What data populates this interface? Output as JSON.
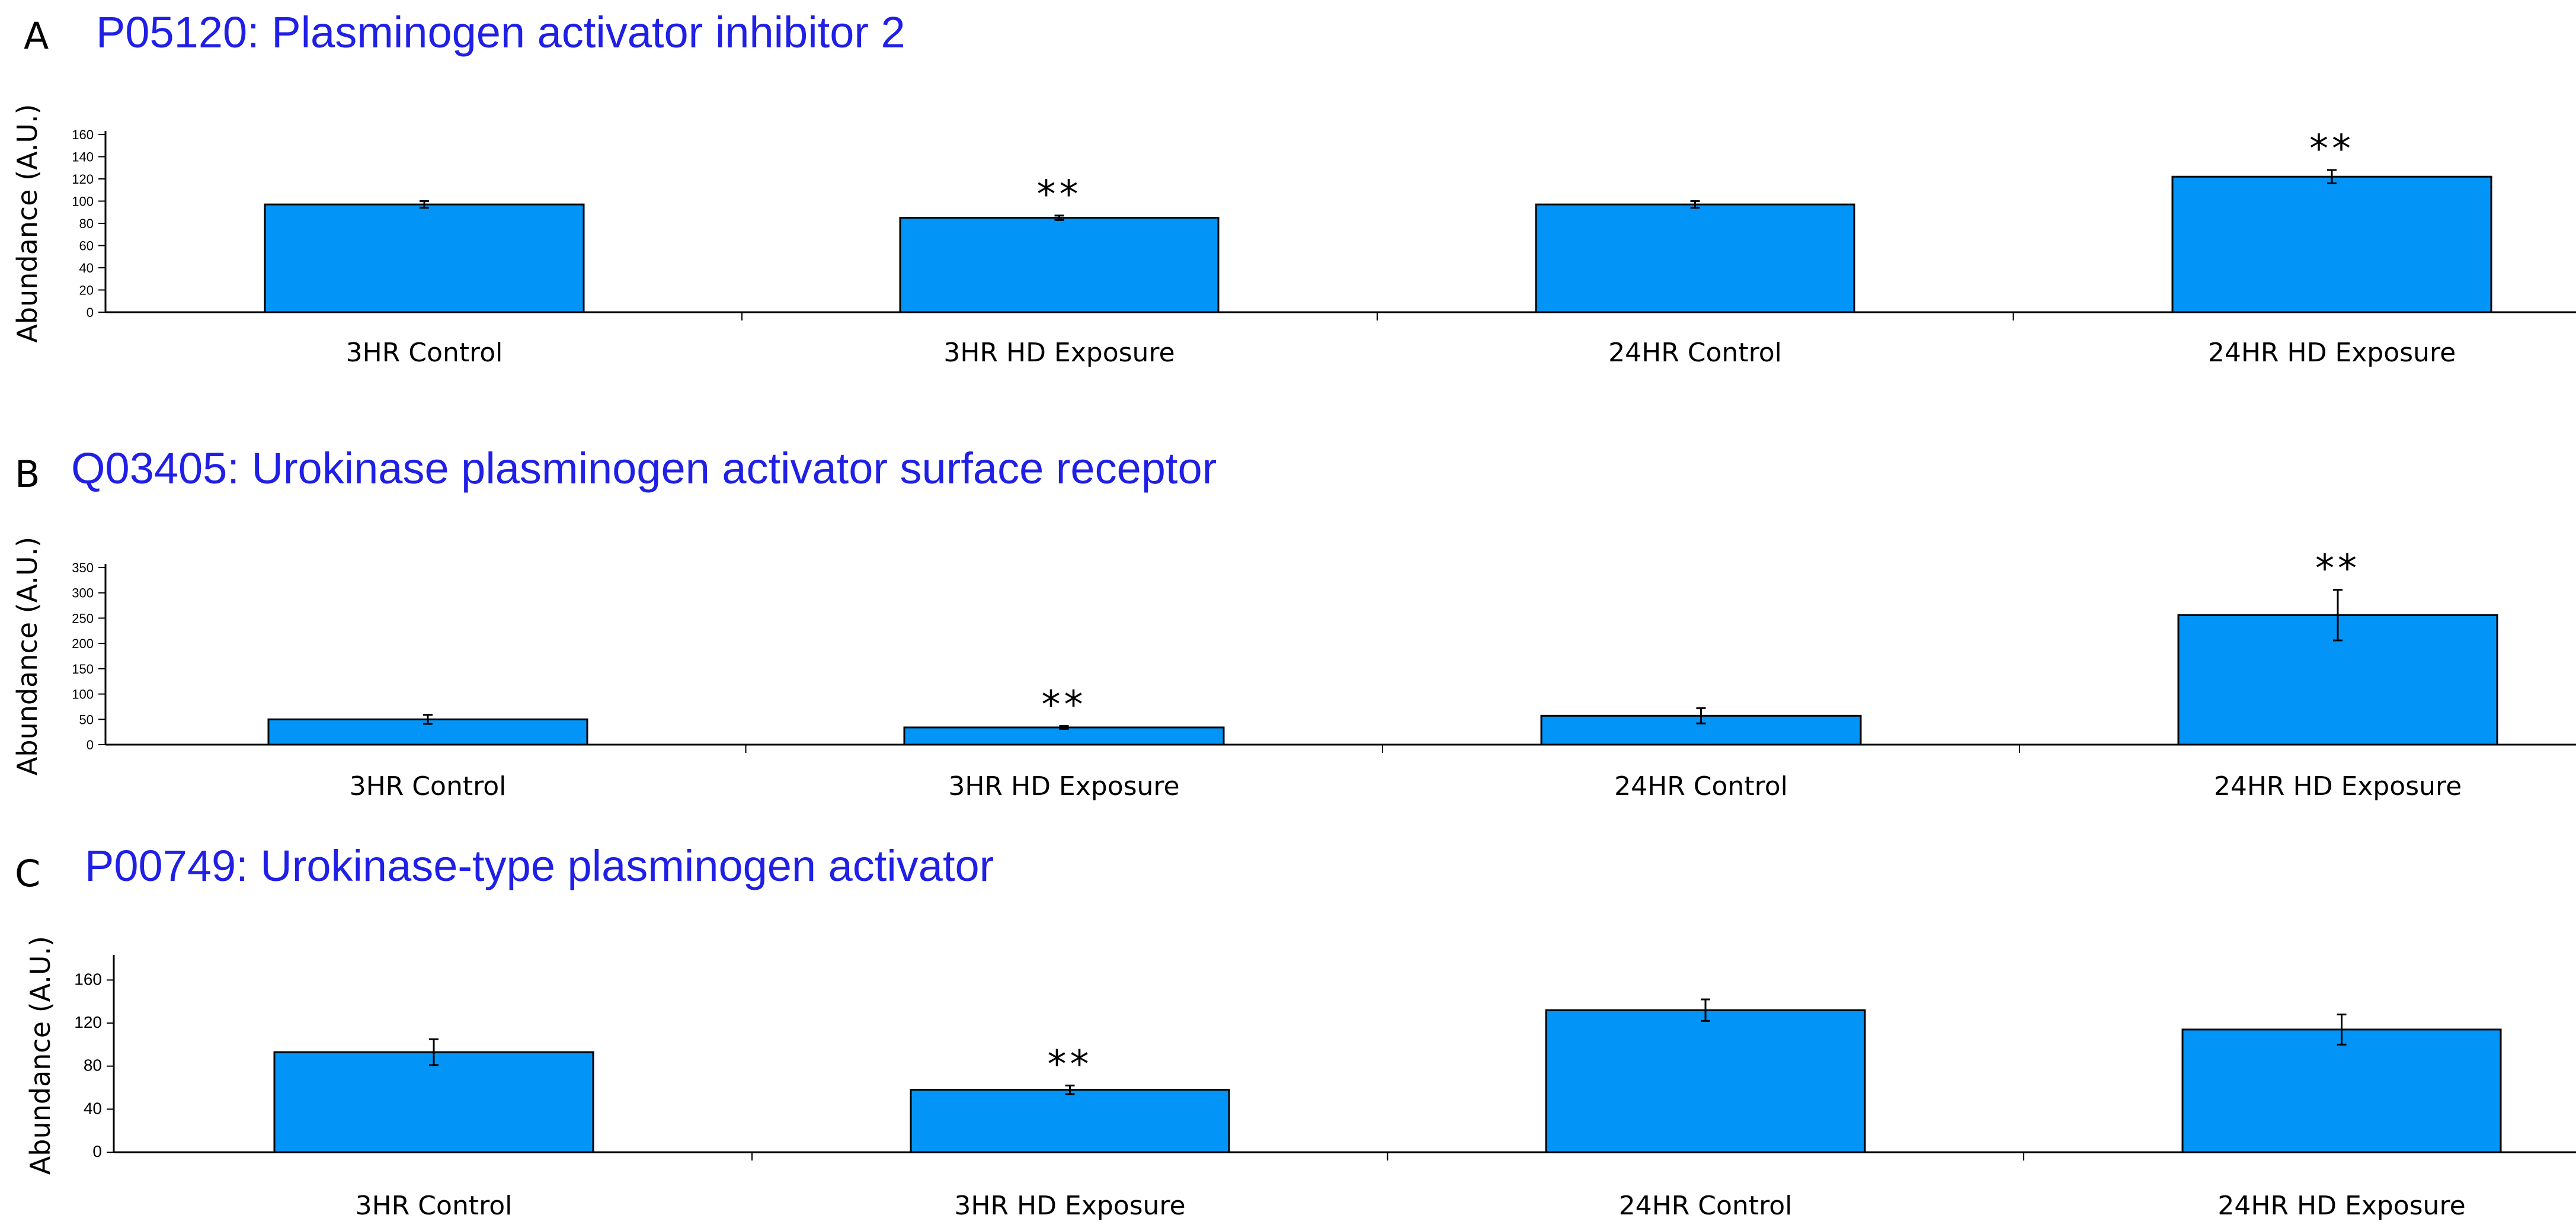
{
  "chart_data": [
    {
      "type": "bar",
      "panel": "A",
      "title": "P05120: Plasminogen activator inhibitor 2",
      "xlabel": "",
      "ylabel": "Abundance (A.U.)",
      "ylim": [
        0,
        160
      ],
      "yticks": [
        0,
        20,
        40,
        60,
        80,
        100,
        120,
        140,
        160
      ],
      "categories": [
        "3HR Control",
        "3HR HD Exposure",
        "24HR Control",
        "24HR HD Exposure"
      ],
      "values": [
        97,
        85,
        97,
        122
      ],
      "errors": [
        3,
        2,
        3,
        6
      ],
      "annotations": [
        "",
        "**",
        "",
        "**"
      ],
      "bar_color": "#0295f7",
      "grid": false
    },
    {
      "type": "bar",
      "panel": "B",
      "title": "Q03405: Urokinase plasminogen activator surface receptor",
      "xlabel": "",
      "ylabel": "Abundance (A.U.)",
      "ylim": [
        0,
        350
      ],
      "yticks": [
        0,
        50,
        100,
        150,
        200,
        250,
        300,
        350
      ],
      "categories": [
        "3HR Control",
        "3HR HD Exposure",
        "24HR Control",
        "24HR HD Exposure"
      ],
      "values": [
        50,
        34,
        57,
        256
      ],
      "errors": [
        9,
        3,
        15,
        50
      ],
      "annotations": [
        "",
        "**",
        "",
        "**"
      ],
      "bar_color": "#0295f7",
      "grid": false
    },
    {
      "type": "bar",
      "panel": "C",
      "title": "P00749: Urokinase-type plasminogen activator",
      "xlabel": "",
      "ylabel": "Abundance (A.U.)",
      "ylim": [
        0,
        180
      ],
      "yticks": [
        0,
        40,
        80,
        120,
        160
      ],
      "categories": [
        "3HR Control",
        "3HR HD Exposure",
        "24HR Control",
        "24HR HD Exposure"
      ],
      "values": [
        93,
        58,
        132,
        114
      ],
      "errors": [
        12,
        4,
        10,
        14
      ],
      "annotations": [
        "",
        "**",
        "",
        ""
      ],
      "bar_color": "#0295f7",
      "grid": false
    }
  ]
}
